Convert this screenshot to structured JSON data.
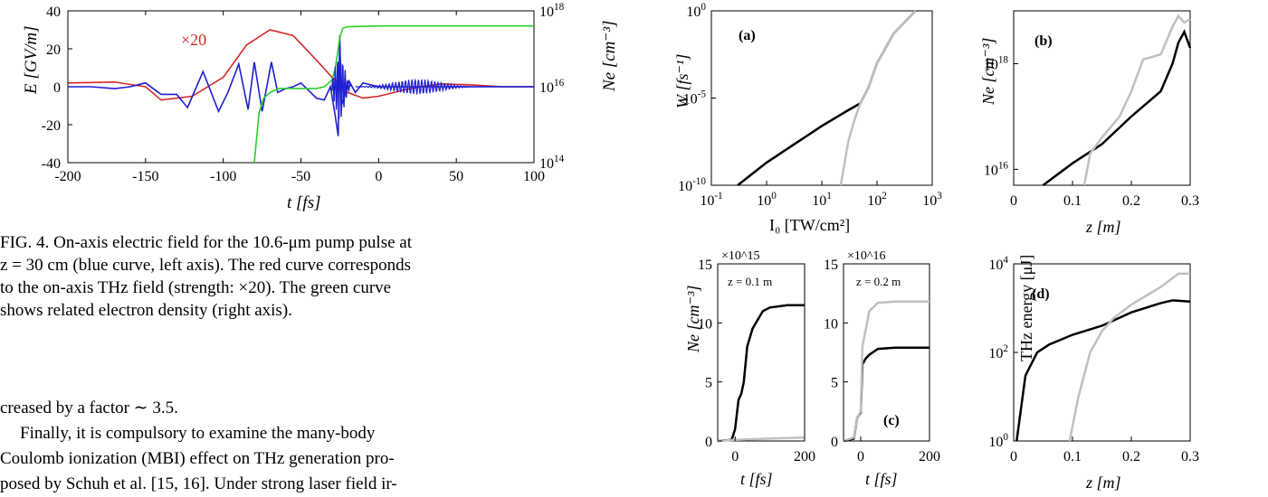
{
  "figure4": {
    "left_axis_label": "E [GV/m]",
    "right_axis_label": "Ne [cm⁻³]",
    "x_label": "t [fs]",
    "annotation": "×20",
    "chart_data": {
      "type": "line",
      "x_ticks": [
        "-200",
        "-150",
        "-100",
        "-50",
        "0",
        "50",
        "100"
      ],
      "y_left_ticks": [
        "40",
        "20",
        "0",
        "-20",
        "-40"
      ],
      "y_right_ticks": [
        "10^18",
        "10^16",
        "10^14"
      ],
      "xlim": [
        -200,
        100
      ],
      "ylim_left": [
        -40,
        40
      ],
      "ylim_right": [
        100000000000000.0,
        1e+18
      ],
      "y_scale_right": "log",
      "series": [
        {
          "color": "#d62728",
          "x": [
            -200,
            -170,
            -150,
            -140,
            -120,
            -100,
            -85,
            -70,
            -55,
            -40,
            -30,
            -20,
            -10,
            0,
            20,
            40,
            60,
            80,
            100
          ],
          "y": [
            2,
            2.5,
            0,
            -7,
            -5,
            5,
            22,
            30,
            27,
            14,
            5,
            -3,
            -6,
            -5,
            -1,
            1.5,
            1,
            0,
            0
          ]
        },
        {
          "color": "#1f1fd1",
          "x": [
            -200,
            -185,
            -170,
            -160,
            -150,
            -140,
            -130,
            -123,
            -113,
            -103,
            -97,
            -90,
            -84,
            -80,
            -75,
            -69,
            -65,
            -60,
            -55,
            -50,
            -45,
            -40,
            -35,
            -31,
            -28,
            -26,
            -25,
            -24,
            -22,
            -19,
            -15,
            -10,
            0,
            10,
            20,
            30,
            40,
            50,
            60,
            80,
            100
          ],
          "y": [
            0,
            0,
            -1,
            0,
            2,
            -4,
            -4,
            -11,
            8,
            -13,
            -3,
            12,
            -12,
            13,
            -13,
            13,
            -3,
            -1,
            0,
            2,
            -2,
            -6,
            -7,
            0,
            -15,
            -26,
            27,
            -10,
            -5,
            3,
            -3,
            2,
            0,
            0,
            0,
            0,
            0,
            0,
            0,
            0,
            0
          ]
        },
        {
          "color": "#2ad12a",
          "x": [
            -80,
            -77,
            -74,
            -70,
            -67,
            -64,
            -55,
            -40,
            -35,
            -30,
            -28,
            -26,
            -25,
            -23,
            -20,
            -10,
            0,
            50,
            100
          ],
          "y": [
            100000000000000.0,
            2000000000000000.0,
            5000000000000000.0,
            7000000000000000.0,
            8000000000000000.0,
            9000000000000000.0,
            9000000000000000.0,
            9000000000000000.0,
            1e+16,
            1.5e+16,
            3e+16,
            1e+17,
            2e+17,
            3.5e+17,
            3.8e+17,
            3.9e+17,
            4e+17,
            4e+17,
            4e+17
          ]
        }
      ]
    }
  },
  "caption": {
    "line1": "FIG. 4. On-axis electric field for the 10.6-μm pump pulse at",
    "line2": "z = 30 cm (blue curve, left axis). The red curve corresponds",
    "line3": "to the on-axis THz field (strength: ×20). The green curve",
    "line4": "shows related electron density (right axis)."
  },
  "body": {
    "line1": "creased by a factor ∼ 3.5.",
    "line2": "Finally, it is compulsory to examine the many-body",
    "line3": "Coulomb ionization (MBI) effect on THz generation pro-",
    "line4": "posed by Schuh et al. [15, 16]. Under strong laser field ir-"
  },
  "panel_a": {
    "label": "(a)",
    "ylabel": "W [fs⁻¹]",
    "xlabel": "I₀ [TW/cm²]",
    "y_ticks": [
      "10^0",
      "10^-5",
      "10^-10"
    ],
    "x_ticks": [
      "10^-1",
      "10^0",
      "10^1",
      "10^2",
      "10^3"
    ],
    "chart_data": {
      "type": "line",
      "x_scale": "log",
      "y_scale": "log",
      "xlim": [
        0.1,
        1000
      ],
      "ylim": [
        1e-10,
        1
      ],
      "series": [
        {
          "color": "#000000",
          "x": [
            0.3,
            1,
            3,
            10,
            30,
            50,
            70,
            100,
            200,
            500
          ],
          "y": [
            1e-10,
            2e-09,
            2e-08,
            2.5e-07,
            2e-06,
            5e-06,
            4e-05,
            0.001,
            0.05,
            1
          ]
        },
        {
          "color": "#c0c0c0",
          "x": [
            22,
            25,
            30,
            40,
            50,
            70,
            100,
            200,
            500
          ],
          "y": [
            1e-10,
            1e-09,
            3e-08,
            7e-07,
            5e-06,
            4e-05,
            0.001,
            0.05,
            1
          ]
        }
      ]
    }
  },
  "panel_b": {
    "label": "(b)",
    "ylabel": "Ne [cm⁻³]",
    "xlabel": "z [m]",
    "y_ticks": [
      "10^18",
      "10^16"
    ],
    "x_ticks": [
      "0",
      "0.1",
      "0.2",
      "0.3"
    ],
    "chart_data": {
      "type": "line",
      "y_scale": "log",
      "xlim": [
        0,
        0.3
      ],
      "ylim": [
        5000000000000000.0,
        1e+19
      ],
      "series": [
        {
          "color": "#000000",
          "x": [
            0.05,
            0.1,
            0.15,
            0.2,
            0.25,
            0.27,
            0.28,
            0.29,
            0.3
          ],
          "y": [
            5000000000000000.0,
            1.3e+16,
            3e+16,
            1e+17,
            3e+17,
            1e+18,
            2.5e+18,
            4e+18,
            2e+18
          ]
        },
        {
          "color": "#c0c0c0",
          "x": [
            0.12,
            0.13,
            0.15,
            0.18,
            0.2,
            0.22,
            0.25,
            0.27,
            0.28,
            0.29,
            0.3
          ],
          "y": [
            5000000000000000.0,
            2e+16,
            4e+16,
            1e+17,
            3e+17,
            1.2e+18,
            1.5e+18,
            5e+18,
            8e+18,
            6e+18,
            7e+18
          ]
        }
      ]
    }
  },
  "panel_c1": {
    "ylabel": "Ne [cm⁻³]",
    "xlabel": "t [fs]",
    "multiplier": "×10^15",
    "annotation": "z = 0.1 m",
    "y_ticks": [
      "15",
      "10",
      "5",
      "0"
    ],
    "x_ticks": [
      "0",
      "200"
    ],
    "chart_data": {
      "type": "line",
      "xlim": [
        -50,
        200
      ],
      "ylim": [
        0,
        15
      ],
      "series": [
        {
          "color": "#000000",
          "x": [
            -50,
            -10,
            0,
            10,
            18,
            25,
            35,
            50,
            60,
            80,
            100,
            150,
            200
          ],
          "y": [
            0,
            0.1,
            1,
            3.5,
            4,
            5,
            8,
            9.5,
            10,
            11,
            11.3,
            11.5,
            11.5
          ]
        },
        {
          "color": "#c0c0c0",
          "x": [
            -50,
            0,
            100,
            200
          ],
          "y": [
            0,
            0.1,
            0.2,
            0.3
          ]
        }
      ]
    }
  },
  "panel_c2": {
    "xlabel": "t [fs]",
    "multiplier": "×10^16",
    "annotation": "z = 0.2 m",
    "label": "(c)",
    "y_ticks": [
      "15",
      "10",
      "5",
      "0"
    ],
    "x_ticks": [
      "0",
      "200"
    ],
    "chart_data": {
      "type": "line",
      "xlim": [
        -50,
        200
      ],
      "ylim": [
        0,
        15
      ],
      "series": [
        {
          "color": "#000000",
          "x": [
            -50,
            -20,
            -10,
            0,
            5,
            15,
            25,
            50,
            100,
            200
          ],
          "y": [
            0,
            0.2,
            2,
            2.4,
            6.5,
            7,
            7.3,
            7.8,
            7.9,
            7.9
          ]
        },
        {
          "color": "#c0c0c0",
          "x": [
            -50,
            -20,
            -10,
            0,
            5,
            15,
            25,
            50,
            100,
            200
          ],
          "y": [
            0,
            0.3,
            2,
            2.5,
            8,
            9.5,
            11,
            11.7,
            11.8,
            11.8
          ]
        }
      ]
    }
  },
  "panel_d": {
    "label": "(d)",
    "ylabel": "THz energy [μJ]",
    "xlabel": "z [m]",
    "y_ticks": [
      "10^4",
      "10^2",
      "10^0"
    ],
    "x_ticks": [
      "0",
      "0.1",
      "0.2",
      "0.3"
    ],
    "chart_data": {
      "type": "line",
      "y_scale": "log",
      "xlim": [
        0,
        0.3
      ],
      "ylim": [
        1,
        10000.0
      ],
      "series": [
        {
          "color": "#000000",
          "x": [
            0.005,
            0.02,
            0.04,
            0.06,
            0.1,
            0.15,
            0.2,
            0.25,
            0.27,
            0.3
          ],
          "y": [
            1,
            30,
            100,
            150,
            250,
            400,
            800,
            1300,
            1500,
            1400
          ]
        },
        {
          "color": "#c0c0c0",
          "x": [
            0.095,
            0.11,
            0.13,
            0.15,
            0.17,
            0.2,
            0.25,
            0.28,
            0.3
          ],
          "y": [
            1,
            10,
            100,
            300,
            600,
            1200,
            3000,
            6000,
            6000
          ]
        }
      ]
    }
  }
}
